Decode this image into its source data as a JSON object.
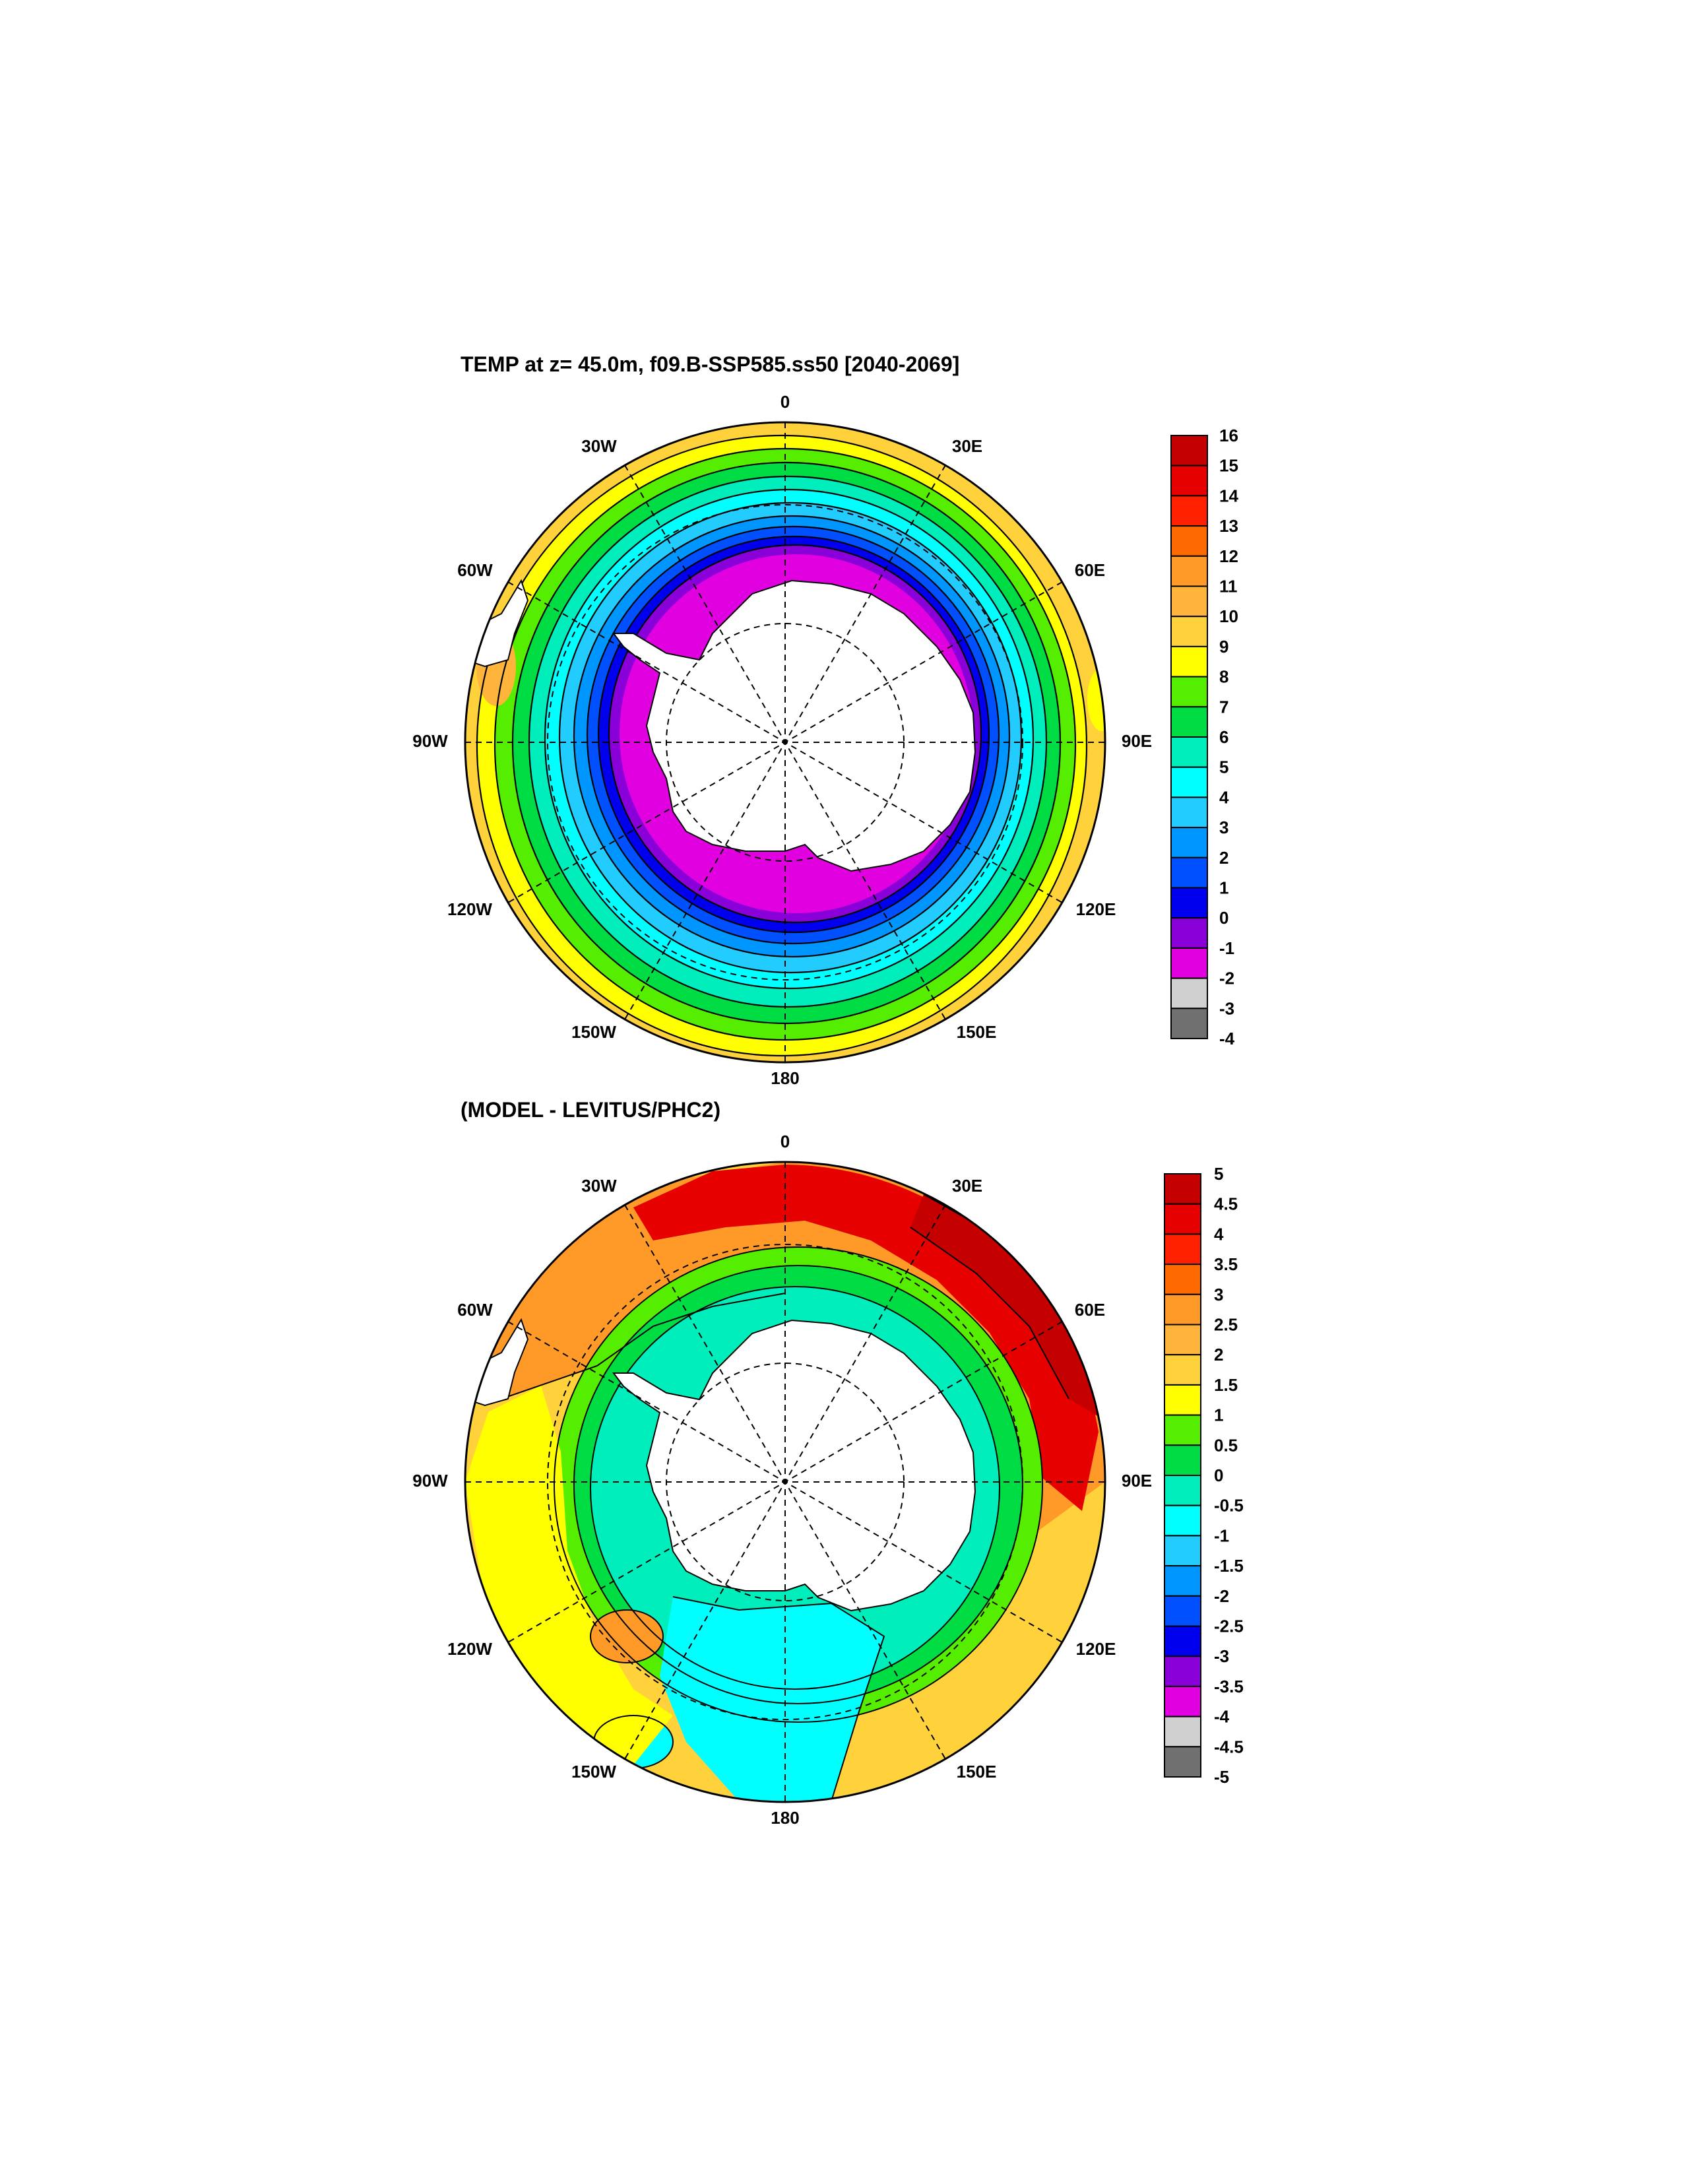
{
  "panels": [
    {
      "id": "top",
      "title": "TEMP at z=  45.0m, f09.B-SSP585.ss50 [2040-2069]",
      "colorbar": {
        "labels": [
          "16",
          "15",
          "14",
          "13",
          "12",
          "11",
          "10",
          "9",
          "8",
          "7",
          "6",
          "5",
          "4",
          "3",
          "2",
          "1",
          "0",
          "-1",
          "-2",
          "-3",
          "-4"
        ],
        "colors": [
          "#c40000",
          "#e60000",
          "#ff2000",
          "#ff6a00",
          "#ff9a28",
          "#ffb43c",
          "#ffd23c",
          "#ffff00",
          "#55ee00",
          "#00dd44",
          "#00eebb",
          "#00ffff",
          "#22ccff",
          "#0096ff",
          "#0050ff",
          "#0000ee",
          "#8a00d8",
          "#e100e0",
          "#d0d0d0",
          "#707070"
        ]
      }
    },
    {
      "id": "bottom",
      "title": "(MODEL - LEVITUS/PHC2)",
      "colorbar": {
        "labels": [
          "5",
          "4.5",
          "4",
          "3.5",
          "3",
          "2.5",
          "2",
          "1.5",
          "1",
          "0.5",
          "0",
          "-0.5",
          "-1",
          "-1.5",
          "-2",
          "-2.5",
          "-3",
          "-3.5",
          "-4",
          "-4.5",
          "-5"
        ],
        "colors": [
          "#c40000",
          "#e60000",
          "#ff2000",
          "#ff6a00",
          "#ff9a28",
          "#ffb43c",
          "#ffd23c",
          "#ffff00",
          "#55ee00",
          "#00dd44",
          "#00eebb",
          "#00ffff",
          "#22ccff",
          "#0096ff",
          "#0050ff",
          "#0000ee",
          "#8a00d8",
          "#e100e0",
          "#d0d0d0",
          "#707070"
        ]
      }
    }
  ],
  "longitude_labels": {
    "n0": "0",
    "w30": "30W",
    "e30": "30E",
    "w60": "60W",
    "e60": "60E",
    "w90": "90W",
    "e90": "90E",
    "w120": "120W",
    "e120": "120E",
    "w150": "150W",
    "e150": "150E",
    "s180": "180"
  }
}
